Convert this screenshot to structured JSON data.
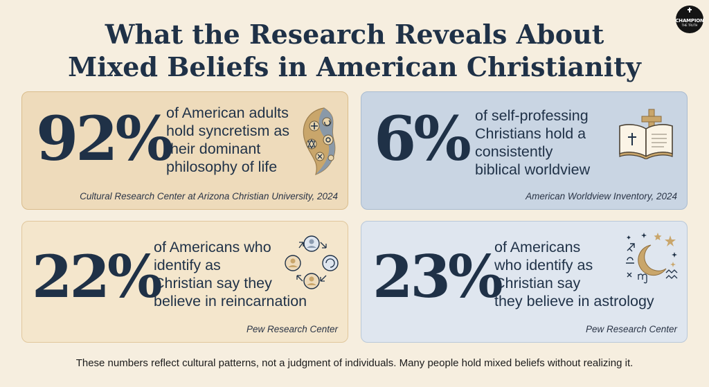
{
  "title_line1": "What the Research Reveals About",
  "title_line2": "Mixed Beliefs in American Christianity",
  "logo": {
    "line1": "CHAMPION",
    "line2": "THE TRUTH",
    "icon": "cross-icon"
  },
  "cards": [
    {
      "stat": "92%",
      "desc_lines": [
        "of American adults",
        "hold syncretism as",
        "their dominant",
        "philosophy of life"
      ],
      "source": "Cultural Research Center at Arizona Christian University, 2024",
      "icon": "religious-symbols-swirl-icon"
    },
    {
      "stat": "6%",
      "desc_lines": [
        "of self-professing",
        "Christians hold a",
        "consistently",
        "biblical worldview"
      ],
      "source": "American Worldview Inventory, 2024",
      "icon": "bible-cross-icon"
    },
    {
      "stat": "22%",
      "desc_lines": [
        "of Americans who",
        "identify as",
        "Christian say they",
        "believe in reincarnation"
      ],
      "source": "Pew Research Center",
      "icon": "reincarnation-cycle-icon"
    },
    {
      "stat": "23%",
      "desc_lines": [
        "of Americans",
        "who identify as",
        "Christian say",
        "they believe in astrology"
      ],
      "source": "Pew Research Center",
      "icon": "astrology-moon-stars-icon"
    }
  ],
  "footer": "These numbers reflect cultural patterns, not a judgment of individuals. Many people hold mixed beliefs without realizing it.",
  "colors": {
    "background": "#f6eedf",
    "navy": "#1f3147",
    "tan_card": "#eedbbb",
    "blue_card": "#c9d5e3",
    "gold": "#c9a66b"
  }
}
